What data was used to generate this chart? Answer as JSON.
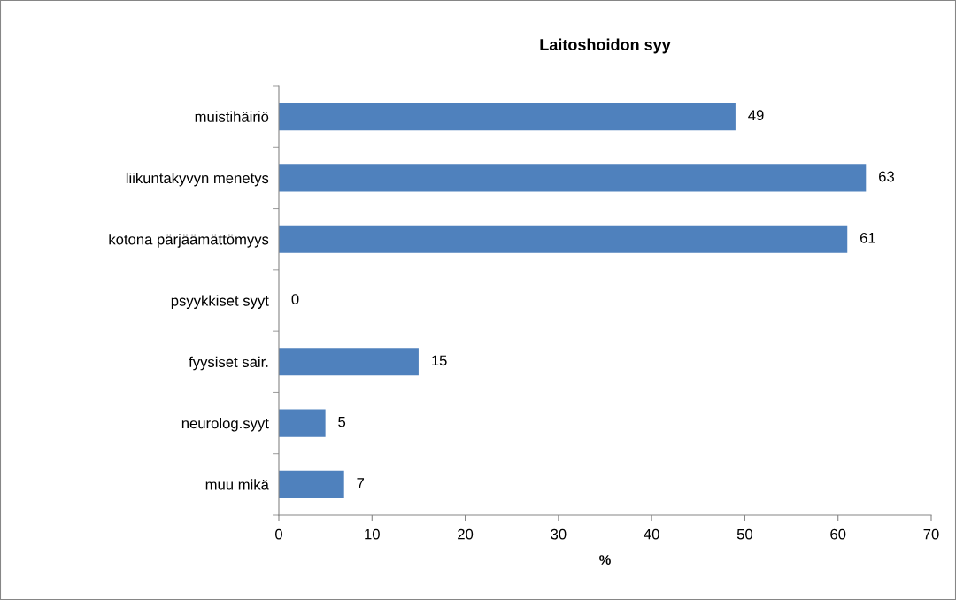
{
  "chart_data": {
    "type": "bar",
    "orientation": "horizontal",
    "title": "Laitoshoidon syy",
    "xlabel": "%",
    "categories": [
      "muistihäiriö",
      "liikuntakyvyn menetys",
      "kotona pärjäämättömyys",
      "psyykkiset syyt",
      "fyysiset sair.",
      "neurolog.syyt",
      "muu mikä"
    ],
    "values": [
      49,
      63,
      61,
      0,
      15,
      5,
      7
    ],
    "color": "#4f81bd",
    "xlim": [
      0,
      70
    ],
    "xticks": [
      0,
      10,
      20,
      30,
      40,
      50,
      60,
      70
    ],
    "data_labels": true,
    "grid": false,
    "legend": false
  }
}
